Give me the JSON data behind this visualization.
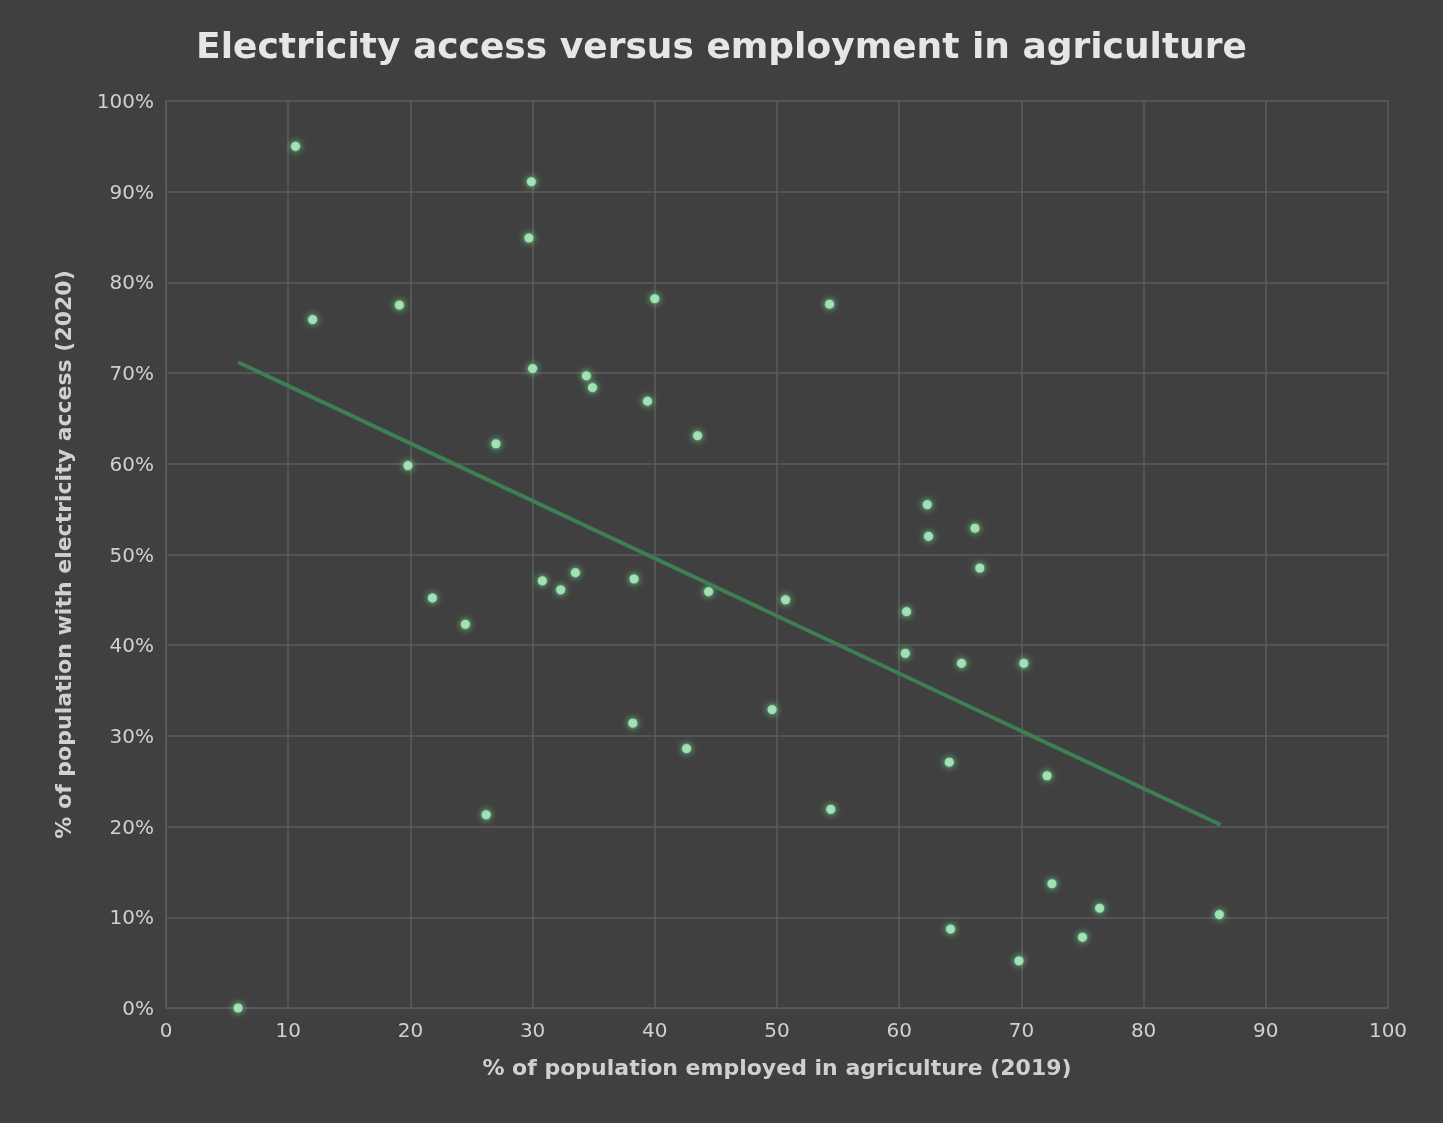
{
  "chart_data": {
    "type": "scatter",
    "title": "Electricity access versus employment in agriculture",
    "xlabel": "% of population employed in agriculture (2019)",
    "ylabel": "% of population with electricity access (2020)",
    "xlim": [
      0,
      100
    ],
    "xticks": [
      0,
      10,
      20,
      30,
      40,
      50,
      60,
      70,
      80,
      90,
      100
    ],
    "ylim": [
      0,
      100
    ],
    "yticks": [
      {
        "value": 0,
        "label": "0%"
      },
      {
        "value": 10,
        "label": "10%"
      },
      {
        "value": 20,
        "label": "20%"
      },
      {
        "value": 30,
        "label": "30%"
      },
      {
        "value": 40,
        "label": "40%"
      },
      {
        "value": 50,
        "label": "50%"
      },
      {
        "value": 60,
        "label": "60%"
      },
      {
        "value": 70,
        "label": "70%"
      },
      {
        "value": 80,
        "label": "80%"
      },
      {
        "value": 90,
        "label": "90%"
      },
      {
        "value": 100,
        "label": "100%"
      }
    ],
    "grid": true,
    "marker": "circle",
    "series": [
      {
        "color": "#b5f5c8",
        "x": [
          5.9,
          10.6,
          12.0,
          19.1,
          19.8,
          21.8,
          24.5,
          26.2,
          27.0,
          29.9,
          29.7,
          30.0,
          30.8,
          32.3,
          33.5,
          34.4,
          34.9,
          38.3,
          38.2,
          39.4,
          40.0,
          42.6,
          43.5,
          44.4,
          49.6,
          50.7,
          54.3,
          54.4,
          60.5,
          60.6,
          62.3,
          62.4,
          64.1,
          64.2,
          65.1,
          66.2,
          66.6,
          69.8,
          70.2,
          72.1,
          72.5,
          75.0,
          76.4,
          86.2
        ],
        "values": [
          0,
          95.0,
          75.9,
          77.5,
          59.8,
          45.2,
          42.3,
          21.3,
          62.2,
          91.1,
          84.9,
          70.5,
          47.1,
          46.1,
          48.0,
          69.7,
          68.4,
          47.3,
          31.4,
          66.9,
          78.2,
          28.6,
          63.1,
          45.9,
          32.9,
          45.0,
          77.6,
          21.9,
          39.1,
          43.7,
          55.5,
          52.0,
          27.1,
          8.7,
          38.0,
          52.9,
          48.5,
          5.2,
          38.0,
          25.6,
          13.7,
          7.8,
          11.0,
          10.3
        ]
      },
      {
        "type": "line",
        "color": "#3d7f52",
        "x": [
          5.9,
          86.3
        ],
        "values": [
          71.2,
          20.2
        ],
        "marker": "none"
      }
    ]
  }
}
